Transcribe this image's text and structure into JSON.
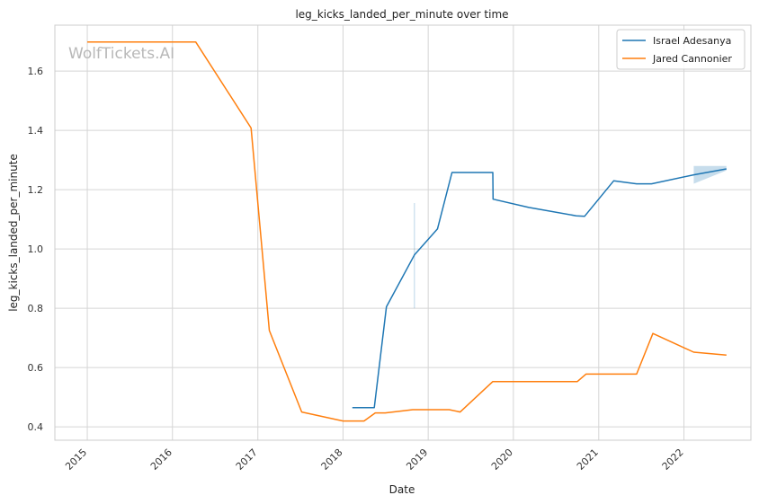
{
  "chart_data": {
    "type": "line",
    "title": "leg_kicks_landed_per_minute over time",
    "xlabel": "Date",
    "ylabel": "leg_kicks_landed_per_minute",
    "x_ticks": [
      "2015",
      "2016",
      "2017",
      "2018",
      "2019",
      "2020",
      "2021",
      "2022"
    ],
    "y_ticks": [
      "0.4",
      "0.6",
      "0.8",
      "1.0",
      "1.2",
      "1.4",
      "1.6"
    ],
    "xlim": [
      "2014-08-15",
      "2022-10-15"
    ],
    "ylim": [
      0.355,
      1.755
    ],
    "grid": true,
    "legend_position": "top-right",
    "watermark": "WolfTickets.AI",
    "series": [
      {
        "name": "Israel Adesanya",
        "color": "#1f77b4",
        "points": [
          {
            "x": "2018-02-10",
            "y": 0.465
          },
          {
            "x": "2018-05-15",
            "y": 0.465
          },
          {
            "x": "2018-07-06",
            "y": 0.805
          },
          {
            "x": "2018-11-03",
            "y": 0.98
          },
          {
            "x": "2019-02-10",
            "y": 1.068
          },
          {
            "x": "2019-04-13",
            "y": 1.258
          },
          {
            "x": "2019-10-05",
            "y": 1.258
          },
          {
            "x": "2019-10-06",
            "y": 1.168
          },
          {
            "x": "2020-03-07",
            "y": 1.14
          },
          {
            "x": "2020-09-26",
            "y": 1.112
          },
          {
            "x": "2020-11-01",
            "y": 1.11
          },
          {
            "x": "2021-03-06",
            "y": 1.23
          },
          {
            "x": "2021-06-12",
            "y": 1.22
          },
          {
            "x": "2021-08-15",
            "y": 1.22
          },
          {
            "x": "2022-02-12",
            "y": 1.25
          },
          {
            "x": "2022-07-02",
            "y": 1.27
          }
        ],
        "confidence_bands": [
          {
            "x": [
              "2018-11-03",
              "2018-11-03"
            ],
            "low": [
              0.8,
              0.8
            ],
            "high": [
              1.155,
              1.155
            ]
          },
          {
            "x": [
              "2022-02-12",
              "2022-07-02"
            ],
            "low": [
              1.22,
              1.265
            ],
            "high": [
              1.28,
              1.28
            ]
          }
        ]
      },
      {
        "name": "Jared Cannonier",
        "color": "#ff7f0e",
        "points": [
          {
            "x": "2015-01-01",
            "y": 1.698
          },
          {
            "x": "2016-04-10",
            "y": 1.698
          },
          {
            "x": "2016-12-03",
            "y": 1.408
          },
          {
            "x": "2017-02-19",
            "y": 0.725
          },
          {
            "x": "2017-07-08",
            "y": 0.45
          },
          {
            "x": "2018-01-01",
            "y": 0.42
          },
          {
            "x": "2018-04-01",
            "y": 0.42
          },
          {
            "x": "2018-05-19",
            "y": 0.447
          },
          {
            "x": "2018-07-01",
            "y": 0.447
          },
          {
            "x": "2018-10-27",
            "y": 0.458
          },
          {
            "x": "2019-04-01",
            "y": 0.458
          },
          {
            "x": "2019-05-18",
            "y": 0.45
          },
          {
            "x": "2019-10-05",
            "y": 0.553
          },
          {
            "x": "2020-10-01",
            "y": 0.553
          },
          {
            "x": "2020-11-07",
            "y": 0.578
          },
          {
            "x": "2021-06-12",
            "y": 0.578
          },
          {
            "x": "2021-08-21",
            "y": 0.715
          },
          {
            "x": "2022-02-12",
            "y": 0.652
          },
          {
            "x": "2022-07-02",
            "y": 0.642
          }
        ]
      }
    ]
  }
}
